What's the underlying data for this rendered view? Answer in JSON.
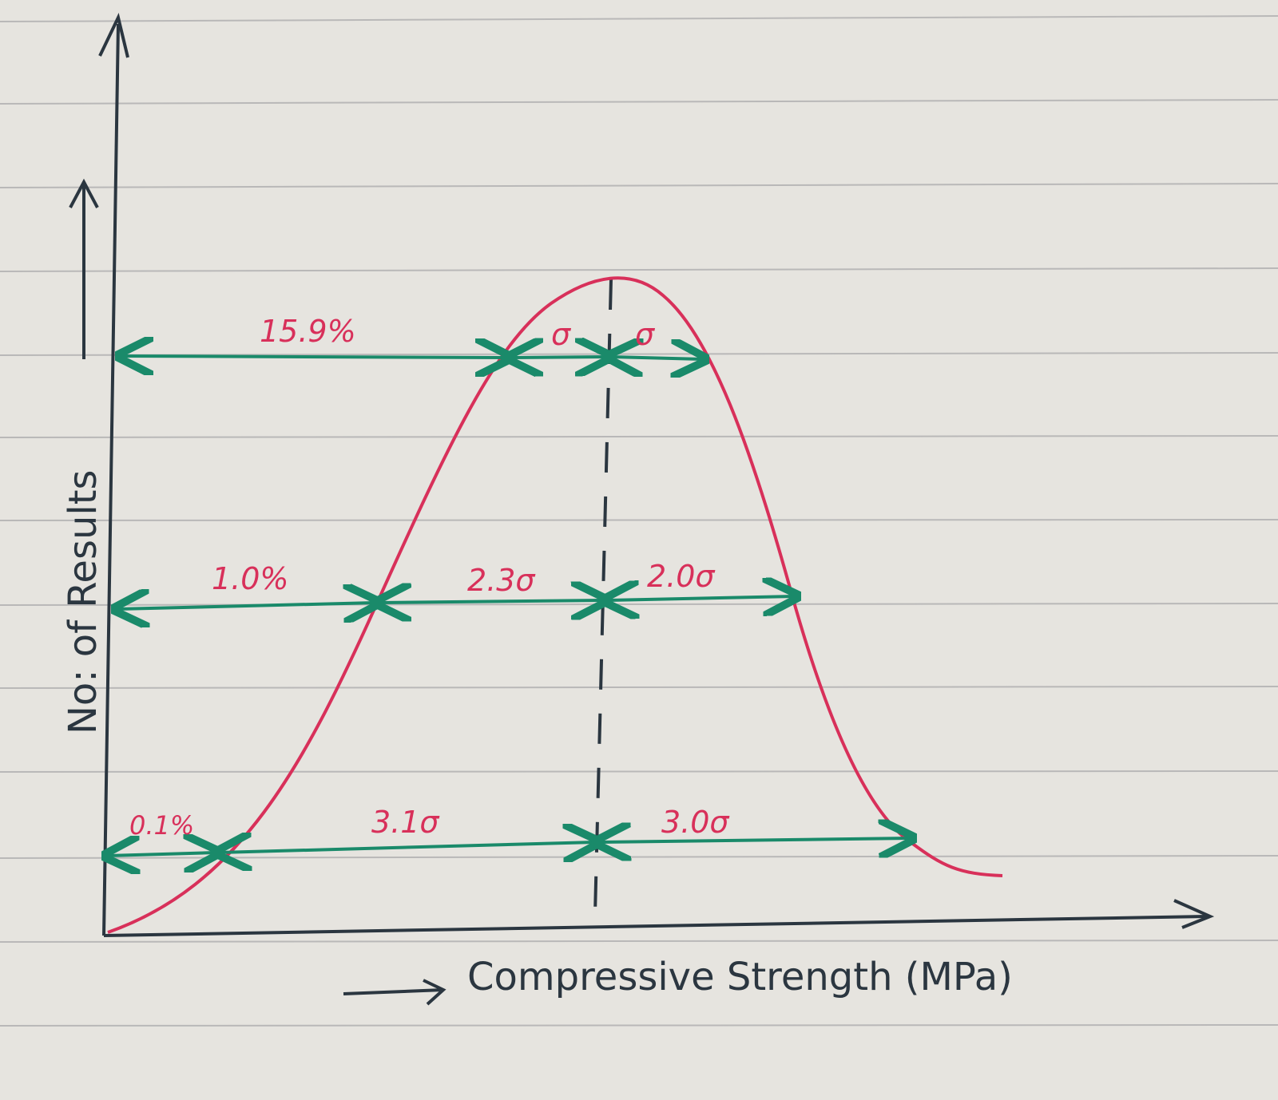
{
  "diagram": {
    "x_axis_label": "Compressive Strength (MPa)",
    "y_axis_label": "No: of Results",
    "levels": [
      {
        "tail_label": "15.9%",
        "left_label": "σ",
        "right_label": "σ"
      },
      {
        "tail_label": "1.0%",
        "left_label": "2.3σ",
        "right_label": "2.0σ"
      },
      {
        "tail_label": "0.1%",
        "left_label": "3.1σ",
        "right_label": "3.0σ"
      }
    ],
    "colors": {
      "curve": "#d8305a",
      "arrows": "#1a8a6a",
      "axes": "#2b3640",
      "paper": "#e6e4df"
    }
  }
}
